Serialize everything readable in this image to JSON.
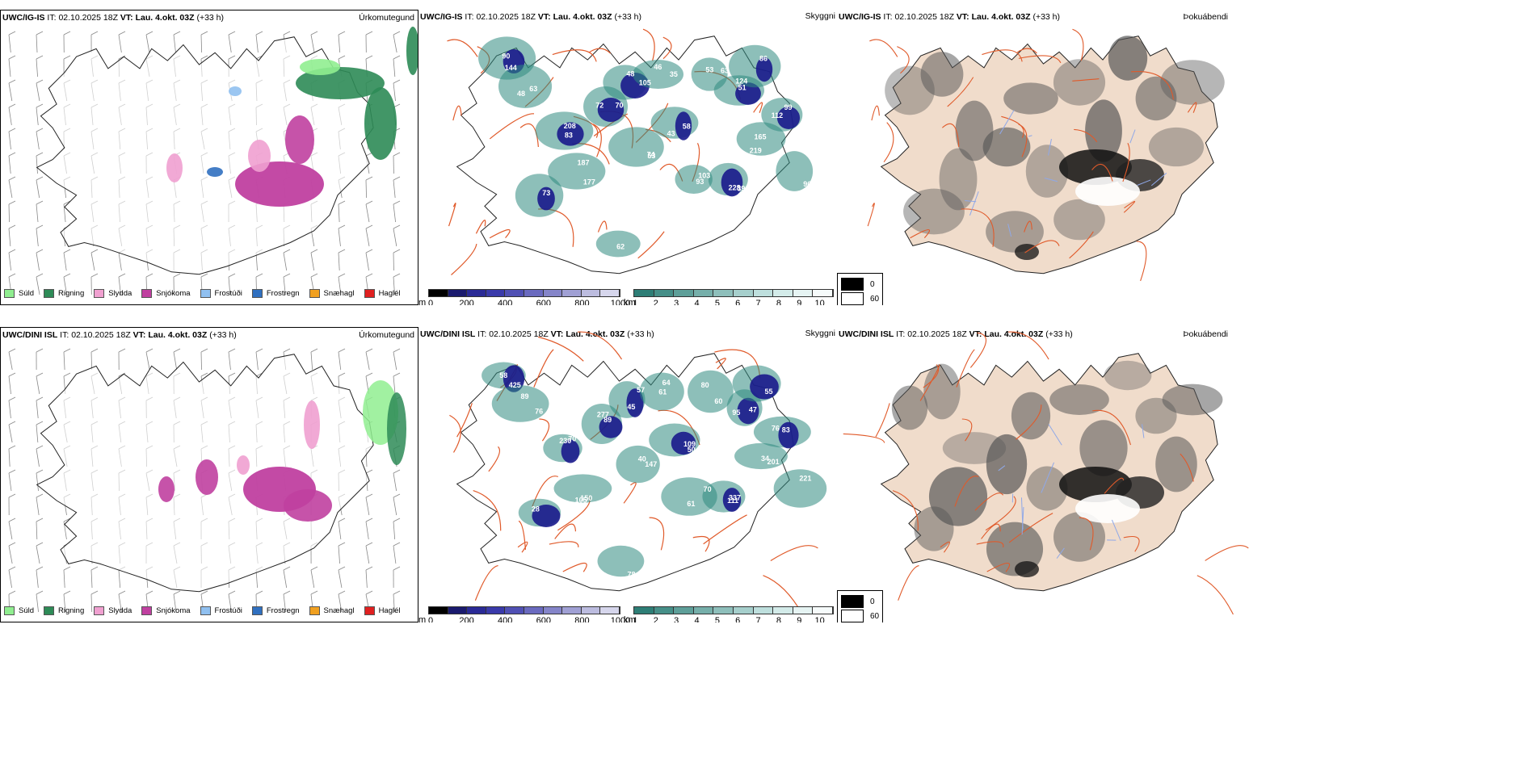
{
  "rows": [
    {
      "model": "UWC/IG-IS",
      "it_label": "IT:",
      "it_value": "02.10.2025 18Z",
      "vt_label": "VT:",
      "vt_value": "Lau. 4.okt. 03Z",
      "lead": "(+33 h)"
    },
    {
      "model": "UWC/DINI ISL",
      "it_label": "IT:",
      "it_value": "02.10.2025 18Z",
      "vt_label": "VT:",
      "vt_value": "Lau. 4.okt. 03Z",
      "lead": "(+33 h)"
    }
  ],
  "panel_labels": {
    "precip_type": "Úrkomutegund",
    "visibility": "Skyggni",
    "fog": "Þokuábendi"
  },
  "precip_legend": [
    {
      "label": "Súld",
      "color": "#90ee90"
    },
    {
      "label": "Rigning",
      "color": "#2e8b57"
    },
    {
      "label": "Slydda",
      "color": "#f0a0d0"
    },
    {
      "label": "Snjókoma",
      "color": "#c040a0"
    },
    {
      "label": "Frostúði",
      "color": "#90c0f0"
    },
    {
      "label": "Frostregn",
      "color": "#3070c0"
    },
    {
      "label": "Snæhagl",
      "color": "#f0a020"
    },
    {
      "label": "Haglél",
      "color": "#e02020"
    }
  ],
  "colorbars": {
    "meters": {
      "unit": "m",
      "ticks": [
        "0",
        "200",
        "400",
        "600",
        "800",
        "1000"
      ]
    },
    "km": {
      "unit": "km",
      "ticks": [
        "1",
        "2",
        "3",
        "4",
        "5",
        "6",
        "7",
        "8",
        "9",
        "10"
      ]
    },
    "fog": {
      "labels": [
        "0",
        "60"
      ]
    }
  },
  "visibility_labels_top": [
    "90",
    "48",
    "208",
    "177",
    "70",
    "53",
    "48",
    "46",
    "58",
    "63",
    "51",
    "219",
    "228",
    "103",
    "99",
    "96",
    "73",
    "62",
    "86",
    "144",
    "63",
    "83",
    "187",
    "72",
    "74",
    "105",
    "35",
    "43",
    "53",
    "124",
    "165",
    "39",
    "93",
    "112"
  ],
  "visibility_labels_bottom": [
    "425",
    "76",
    "230",
    "150",
    "89",
    "147",
    "45",
    "61",
    "50",
    "60",
    "95",
    "201",
    "337",
    "70",
    "76",
    "221",
    "28",
    "78",
    "55",
    "58",
    "89",
    "70",
    "105",
    "277",
    "40",
    "57",
    "64",
    "109",
    "80",
    "47",
    "34",
    "111",
    "61",
    "83"
  ],
  "colors": {
    "land_fill": "#f0dccb",
    "road": "#e05a2a",
    "coast": "#222222",
    "river": "#8fa8e8",
    "vis_dark": "#1a1a8c",
    "vis_teal": "#2f8a80"
  }
}
